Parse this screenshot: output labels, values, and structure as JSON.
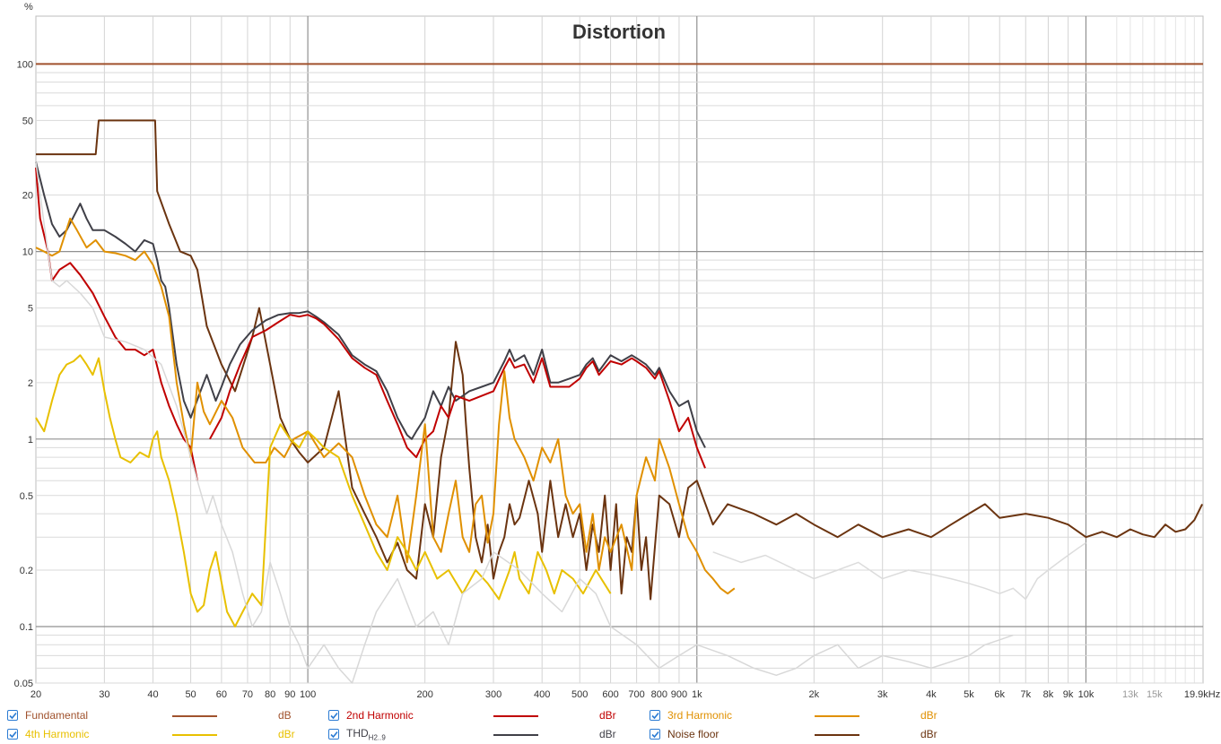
{
  "chart_data": {
    "type": "line",
    "title": "Distortion",
    "y_unit": "%",
    "x_unit": "kHz",
    "x_scale": "log",
    "y_scale": "log",
    "xlim": [
      20,
      20000
    ],
    "ylim": [
      0.05,
      180
    ],
    "grid": true,
    "x_ticks": [
      {
        "v": 20,
        "label": "20"
      },
      {
        "v": 30,
        "label": "30"
      },
      {
        "v": 40,
        "label": "40"
      },
      {
        "v": 50,
        "label": "50"
      },
      {
        "v": 60,
        "label": "60"
      },
      {
        "v": 70,
        "label": "70"
      },
      {
        "v": 80,
        "label": "80"
      },
      {
        "v": 90,
        "label": "90"
      },
      {
        "v": 100,
        "label": "100"
      },
      {
        "v": 200,
        "label": "200"
      },
      {
        "v": 300,
        "label": "300"
      },
      {
        "v": 400,
        "label": "400"
      },
      {
        "v": 500,
        "label": "500"
      },
      {
        "v": 600,
        "label": "600"
      },
      {
        "v": 700,
        "label": "700"
      },
      {
        "v": 800,
        "label": "800"
      },
      {
        "v": 900,
        "label": "900"
      },
      {
        "v": 1000,
        "label": "1k"
      },
      {
        "v": 2000,
        "label": "2k"
      },
      {
        "v": 3000,
        "label": "3k"
      },
      {
        "v": 4000,
        "label": "4k"
      },
      {
        "v": 5000,
        "label": "5k"
      },
      {
        "v": 6000,
        "label": "6k"
      },
      {
        "v": 7000,
        "label": "7k"
      },
      {
        "v": 8000,
        "label": "8k"
      },
      {
        "v": 9000,
        "label": "9k"
      },
      {
        "v": 10000,
        "label": "10k"
      },
      {
        "v": 13000,
        "label": "13k",
        "faded": true
      },
      {
        "v": 15000,
        "label": "15k",
        "faded": true
      },
      {
        "v": 19900,
        "label": "19.9kHz"
      }
    ],
    "y_ticks": [
      {
        "v": 100,
        "label": "100"
      },
      {
        "v": 50,
        "label": "50"
      },
      {
        "v": 20,
        "label": "20"
      },
      {
        "v": 10,
        "label": "10"
      },
      {
        "v": 5,
        "label": "5"
      },
      {
        "v": 2,
        "label": "2"
      },
      {
        "v": 1,
        "label": "1"
      },
      {
        "v": 0.5,
        "label": "0.5"
      },
      {
        "v": 0.2,
        "label": "0.2"
      },
      {
        "v": 0.1,
        "label": "0.1"
      },
      {
        "v": 0.05,
        "label": "0.05"
      }
    ],
    "series": [
      {
        "name": "Fundamental",
        "color": "#a0522d",
        "unit": "dB",
        "width": 2,
        "x": [
          20,
          20000
        ],
        "y": [
          100,
          100
        ]
      },
      {
        "name": "Noise floor",
        "color": "#6b3410",
        "unit": "dBr",
        "width": 2,
        "x": [
          20,
          28.5,
          29,
          40.5,
          41,
          44,
          47,
          50,
          52,
          55,
          60,
          65,
          72,
          75,
          80,
          85,
          90,
          95,
          100,
          110,
          120,
          130,
          140,
          150,
          160,
          170,
          180,
          190,
          200,
          210,
          220,
          230,
          240,
          250,
          255,
          260,
          270,
          280,
          290,
          300,
          310,
          320,
          330,
          340,
          350,
          370,
          390,
          400,
          420,
          440,
          460,
          480,
          500,
          520,
          540,
          560,
          580,
          600,
          620,
          640,
          660,
          680,
          700,
          720,
          740,
          760,
          800,
          850,
          900,
          950,
          1000,
          1100,
          1200,
          1400,
          1600,
          1800,
          2000,
          2300,
          2600,
          3000,
          3500,
          4000,
          4500,
          5000,
          5500,
          6000,
          7000,
          8000,
          9000,
          10000,
          11000,
          12000,
          13000,
          14000,
          15000,
          16000,
          17000,
          18000,
          19000,
          19900
        ],
        "y": [
          33,
          33,
          50,
          50,
          21,
          14,
          10,
          9.5,
          8,
          4,
          2.5,
          1.8,
          3.5,
          5,
          2.5,
          1.3,
          1,
          0.85,
          0.75,
          0.9,
          1.8,
          0.55,
          0.4,
          0.3,
          0.22,
          0.28,
          0.2,
          0.18,
          0.45,
          0.3,
          0.8,
          1.3,
          3.3,
          2.2,
          1.2,
          0.7,
          0.3,
          0.22,
          0.35,
          0.18,
          0.25,
          0.3,
          0.45,
          0.35,
          0.38,
          0.6,
          0.4,
          0.25,
          0.6,
          0.3,
          0.45,
          0.3,
          0.4,
          0.2,
          0.35,
          0.25,
          0.5,
          0.2,
          0.45,
          0.15,
          0.3,
          0.25,
          0.5,
          0.2,
          0.3,
          0.14,
          0.5,
          0.45,
          0.3,
          0.55,
          0.6,
          0.35,
          0.45,
          0.4,
          0.35,
          0.4,
          0.35,
          0.3,
          0.35,
          0.3,
          0.33,
          0.3,
          0.35,
          0.4,
          0.45,
          0.38,
          0.4,
          0.38,
          0.35,
          0.3,
          0.32,
          0.3,
          0.33,
          0.31,
          0.3,
          0.35,
          0.32,
          0.33,
          0.37,
          0.45
        ]
      },
      {
        "name": "THD",
        "sub": "H2..9",
        "color": "#404048",
        "unit": "dBr",
        "width": 2,
        "x": [
          20,
          21,
          22,
          23,
          24,
          26,
          27,
          28,
          29,
          30,
          32,
          34,
          36,
          38,
          40,
          41,
          42,
          43,
          44,
          46,
          48,
          50,
          53,
          55,
          58,
          60,
          63,
          67,
          72,
          78,
          84,
          90,
          95,
          100,
          105,
          110,
          120,
          130,
          140,
          150,
          160,
          170,
          180,
          185,
          190,
          200,
          210,
          220,
          230,
          240,
          260,
          280,
          300,
          320,
          330,
          340,
          360,
          380,
          400,
          420,
          440,
          470,
          500,
          520,
          540,
          560,
          600,
          640,
          680,
          700,
          740,
          780,
          800,
          850,
          900,
          950,
          1000,
          1050
        ],
        "y": [
          30,
          20,
          14,
          12,
          13,
          18,
          15,
          13,
          13,
          13,
          12,
          11,
          10,
          11.5,
          11,
          9,
          7,
          6.5,
          5,
          2.5,
          1.6,
          1.3,
          1.8,
          2.2,
          1.6,
          1.9,
          2.5,
          3.2,
          3.8,
          4.3,
          4.6,
          4.7,
          4.7,
          4.8,
          4.5,
          4.2,
          3.6,
          2.8,
          2.5,
          2.3,
          1.8,
          1.3,
          1.05,
          1.0,
          1.1,
          1.3,
          1.8,
          1.5,
          1.9,
          1.6,
          1.8,
          1.9,
          2.0,
          2.6,
          3.0,
          2.6,
          2.8,
          2.2,
          3.0,
          2.0,
          2.0,
          2.1,
          2.2,
          2.5,
          2.7,
          2.3,
          2.8,
          2.6,
          2.8,
          2.7,
          2.5,
          2.2,
          2.4,
          1.8,
          1.5,
          1.6,
          1.1,
          0.9
        ]
      },
      {
        "name": "2nd Harmonic",
        "color": "#c00000",
        "unit": "dBr",
        "width": 2,
        "x": [
          20,
          20.5,
          21.5,
          22,
          23,
          24.5,
          26,
          28,
          30,
          32,
          34,
          36,
          38,
          40,
          42,
          44,
          46,
          48,
          50,
          52,
          54,
          56,
          60,
          63,
          67,
          72,
          78,
          84,
          90,
          95,
          100,
          105,
          110,
          120,
          130,
          140,
          150,
          160,
          170,
          180,
          190,
          200,
          210,
          220,
          230,
          240,
          260,
          280,
          300,
          320,
          330,
          340,
          360,
          380,
          400,
          420,
          440,
          470,
          500,
          520,
          540,
          560,
          600,
          640,
          680,
          700,
          740,
          780,
          800,
          850,
          900,
          950,
          1000,
          1050
        ],
        "y": [
          28,
          15,
          10,
          7,
          8,
          8.7,
          7.5,
          6,
          4.5,
          3.5,
          3.0,
          3.0,
          2.8,
          3.0,
          2.0,
          1.5,
          1.2,
          1.0,
          0.9,
          0.6,
          null,
          1.0,
          1.3,
          1.8,
          2.5,
          3.5,
          3.8,
          4.2,
          4.6,
          4.5,
          4.6,
          4.4,
          4.1,
          3.4,
          2.7,
          2.4,
          2.2,
          1.6,
          1.2,
          0.9,
          0.8,
          1.0,
          1.1,
          1.5,
          1.3,
          1.7,
          1.6,
          1.7,
          1.8,
          2.4,
          2.7,
          2.4,
          2.5,
          2.0,
          2.7,
          1.9,
          1.9,
          1.9,
          2.1,
          2.4,
          2.6,
          2.2,
          2.6,
          2.5,
          2.7,
          2.6,
          2.4,
          2.1,
          2.3,
          1.6,
          1.1,
          1.3,
          0.9,
          0.7
        ]
      },
      {
        "name": "3rd Harmonic",
        "color": "#e09000",
        "unit": "dBr",
        "width": 2,
        "x": [
          20,
          21,
          22,
          23,
          24.5,
          25.5,
          27,
          28.5,
          30,
          32,
          34,
          36,
          38,
          40,
          42,
          44,
          46,
          48,
          50,
          52,
          54,
          56,
          60,
          64,
          68,
          73,
          78,
          82,
          87,
          92,
          100,
          110,
          120,
          130,
          140,
          150,
          160,
          170,
          180,
          190,
          200,
          210,
          220,
          230,
          240,
          250,
          260,
          270,
          280,
          290,
          300,
          310,
          320,
          330,
          340,
          360,
          380,
          400,
          420,
          440,
          460,
          480,
          500,
          520,
          540,
          560,
          580,
          600,
          640,
          680,
          700,
          740,
          780,
          800,
          850,
          900,
          950,
          1000,
          1050,
          1100,
          1150,
          1200,
          1250
        ],
        "y": [
          10.5,
          10,
          9.5,
          10,
          15,
          13,
          10.5,
          11.5,
          10,
          9.8,
          9.5,
          9,
          10,
          8.5,
          6.5,
          4.5,
          2.0,
          1.2,
          0.8,
          2.0,
          1.4,
          1.2,
          1.6,
          1.3,
          0.9,
          0.75,
          0.75,
          0.9,
          0.8,
          1.0,
          1.1,
          0.8,
          0.95,
          0.8,
          0.5,
          0.35,
          0.3,
          0.5,
          0.22,
          0.5,
          1.2,
          0.3,
          0.25,
          0.4,
          0.6,
          0.3,
          0.25,
          0.45,
          0.5,
          0.28,
          0.4,
          1.2,
          2.3,
          1.3,
          1.0,
          0.8,
          0.6,
          0.9,
          0.75,
          1.0,
          0.5,
          0.4,
          0.45,
          0.25,
          0.4,
          0.2,
          0.3,
          0.25,
          0.35,
          0.2,
          0.5,
          0.8,
          0.6,
          1.0,
          0.7,
          0.45,
          0.3,
          0.25,
          0.2,
          0.18,
          0.16,
          0.15,
          0.16
        ]
      },
      {
        "name": "4th Harmonic",
        "color": "#e8c000",
        "unit": "dBr",
        "width": 2,
        "x": [
          20,
          21,
          22,
          23,
          24,
          25,
          26,
          27,
          28,
          29,
          30,
          31,
          32,
          33,
          35,
          37,
          39,
          40,
          41,
          42,
          44,
          46,
          48,
          50,
          52,
          54,
          56,
          58,
          62,
          65,
          68,
          72,
          76,
          80,
          85,
          90,
          95,
          100,
          105,
          110,
          120,
          130,
          140,
          150,
          160,
          170,
          180,
          190,
          200,
          215,
          230,
          250,
          270,
          290,
          310,
          330,
          340,
          350,
          370,
          390,
          410,
          430,
          450,
          480,
          510,
          550,
          600
        ],
        "y": [
          1.3,
          1.1,
          1.6,
          2.2,
          2.5,
          2.6,
          2.8,
          2.5,
          2.2,
          2.7,
          1.8,
          1.3,
          1.0,
          0.8,
          0.75,
          0.85,
          0.8,
          1.0,
          1.1,
          0.8,
          0.6,
          0.4,
          0.25,
          0.15,
          0.12,
          0.13,
          0.2,
          0.25,
          0.12,
          0.1,
          0.12,
          0.15,
          0.13,
          0.9,
          1.2,
          1.0,
          0.9,
          1.1,
          1.0,
          0.9,
          0.8,
          0.5,
          0.35,
          0.25,
          0.2,
          0.3,
          0.25,
          0.2,
          0.25,
          0.18,
          0.2,
          0.15,
          0.2,
          0.17,
          0.14,
          0.2,
          0.25,
          0.18,
          0.15,
          0.25,
          0.2,
          0.15,
          0.2,
          0.18,
          0.15,
          0.2,
          0.15
        ]
      },
      {
        "name": "",
        "color": "#d8d8d8",
        "unit": "",
        "width": 1.5,
        "x": [
          20,
          21,
          22,
          23,
          24,
          26,
          28,
          30,
          34,
          38,
          42,
          46,
          50,
          52,
          55,
          57,
          60,
          64,
          68,
          72,
          76,
          80,
          85,
          90,
          95,
          100,
          110,
          120,
          130,
          140,
          150,
          170,
          190,
          210,
          230,
          250,
          280,
          300,
          350,
          400,
          450,
          500,
          550,
          600,
          700,
          800,
          900,
          1000,
          1200,
          1400,
          1600,
          1800,
          2000,
          2300,
          2600,
          3000,
          3500,
          4000,
          4500,
          5000,
          5500,
          6000,
          6500
        ],
        "y": [
          30,
          14,
          7,
          6.5,
          7,
          6,
          5,
          3.5,
          3.3,
          3.0,
          2.5,
          1.5,
          0.8,
          0.6,
          0.4,
          0.5,
          0.35,
          0.25,
          0.15,
          0.1,
          0.12,
          0.22,
          0.15,
          0.1,
          0.08,
          0.06,
          0.08,
          0.06,
          0.05,
          0.08,
          0.12,
          0.18,
          0.1,
          0.12,
          0.08,
          0.15,
          0.18,
          0.25,
          0.2,
          0.15,
          0.12,
          0.18,
          0.15,
          0.1,
          0.08,
          0.06,
          0.07,
          0.08,
          0.07,
          0.06,
          0.055,
          0.06,
          0.07,
          0.08,
          0.06,
          0.07,
          0.065,
          0.06,
          0.065,
          0.07,
          0.08,
          0.085,
          0.09
        ]
      },
      {
        "name": "",
        "color": "#dcdcdc",
        "unit": "",
        "width": 1.5,
        "x": [
          1100,
          1300,
          1500,
          1800,
          2000,
          2300,
          2600,
          3000,
          3500,
          4000,
          4500,
          5000,
          5500,
          6000,
          6500,
          7000,
          7500,
          8000,
          8500,
          9000,
          9500,
          10000
        ],
        "y": [
          0.25,
          0.22,
          0.24,
          0.2,
          0.18,
          0.2,
          0.22,
          0.18,
          0.2,
          0.19,
          0.18,
          0.17,
          0.16,
          0.15,
          0.16,
          0.14,
          0.18,
          0.2,
          0.22,
          0.24,
          0.26,
          0.28
        ]
      }
    ]
  },
  "legend": {
    "items": [
      {
        "label": "Fundamental",
        "sub": "",
        "unit": "dB",
        "color": "#a0522d",
        "text_color": "#a0522d"
      },
      {
        "label": "2nd Harmonic",
        "sub": "",
        "unit": "dBr",
        "color": "#c00000",
        "text_color": "#c00000"
      },
      {
        "label": "3rd Harmonic",
        "sub": "",
        "unit": "dBr",
        "color": "#e09000",
        "text_color": "#e09000"
      },
      {
        "label": "4th Harmonic",
        "sub": "",
        "unit": "dBr",
        "color": "#e8c000",
        "text_color": "#e8c000"
      },
      {
        "label": "THD",
        "sub": "H2..9",
        "unit": "dBr",
        "color": "#404048",
        "text_color": "#404048"
      },
      {
        "label": "Noise floor",
        "sub": "",
        "unit": "dBr",
        "color": "#6b3410",
        "text_color": "#6b3410"
      }
    ],
    "checked": true
  }
}
